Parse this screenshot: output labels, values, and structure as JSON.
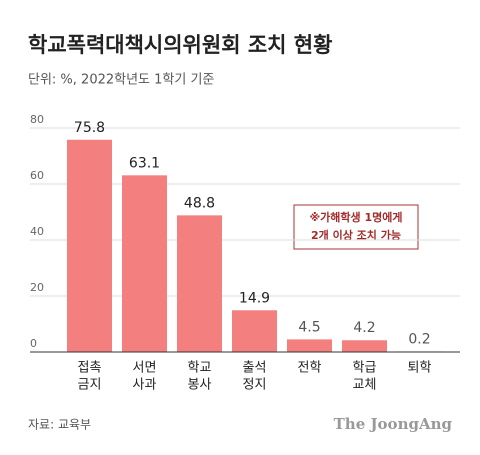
{
  "chart_data": {
    "type": "bar",
    "title": "학교폭력대책시의위원회 조치 현황",
    "subtitle": "단위: %, 2022학년도 1학기 기준",
    "categories": [
      [
        "접촉",
        "금지"
      ],
      [
        "서면",
        "사과"
      ],
      [
        "학교",
        "봉사"
      ],
      [
        "출석",
        "정지"
      ],
      [
        "전학"
      ],
      [
        "학급",
        "교체"
      ],
      [
        "퇴학"
      ]
    ],
    "values": [
      75.8,
      63.1,
      48.8,
      14.9,
      4.5,
      4.2,
      0.2
    ],
    "color": "#f47f7f",
    "ylim": [
      0,
      80
    ],
    "yticks": [
      0,
      20,
      40,
      60,
      80
    ],
    "grid": true,
    "annotation": [
      "※가해학생 1명에게",
      "2개 이상 조치 가능"
    ],
    "source": "자료: 교육부",
    "logo": "The JoongAng"
  }
}
